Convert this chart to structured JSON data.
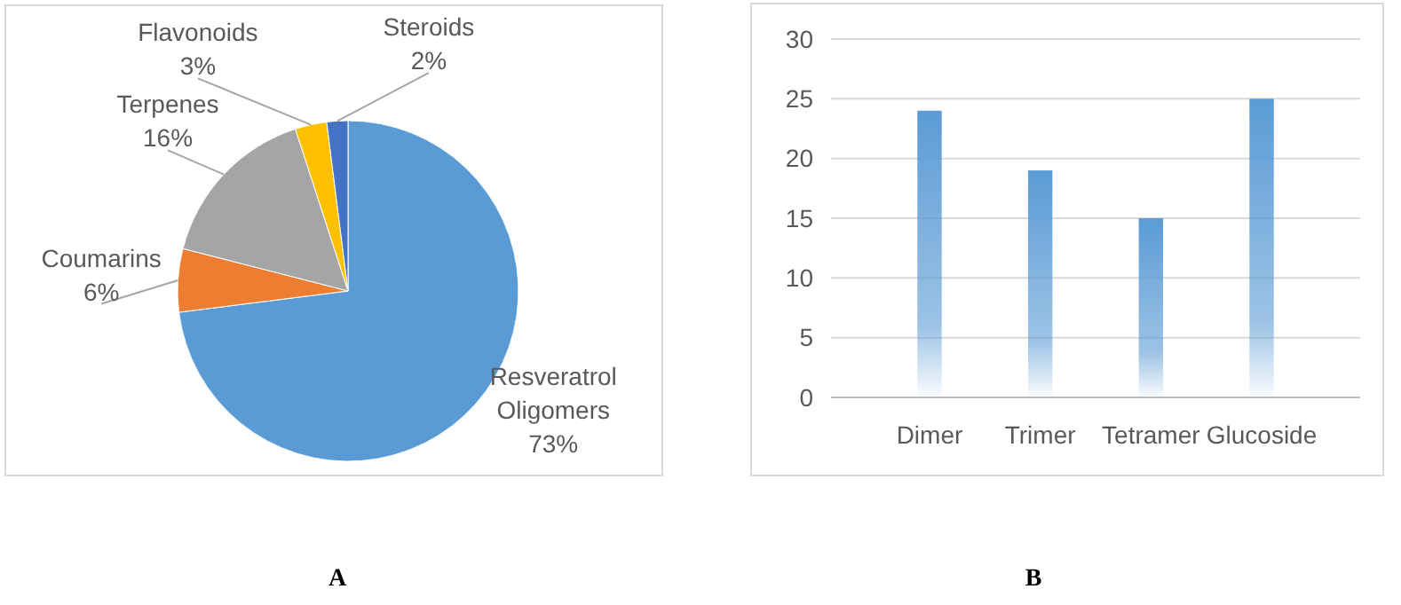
{
  "chart_data": [
    {
      "type": "pie",
      "categories": [
        "Resveratrol Oligomers",
        "Coumarins",
        "Terpenes",
        "Flavonoids",
        "Steroids"
      ],
      "values": [
        73,
        6,
        16,
        3,
        2
      ],
      "value_labels": [
        "73%",
        "6%",
        "16%",
        "3%",
        "2%"
      ],
      "colors": [
        "#5b9bd5",
        "#ed7d31",
        "#a5a5a5",
        "#ffc000",
        "#4472c4"
      ],
      "annotations": [
        "A"
      ]
    },
    {
      "type": "bar",
      "categories": [
        "Dimer",
        "Trimer",
        "Tetramer",
        "Glucoside"
      ],
      "values": [
        24,
        19,
        15,
        25
      ],
      "color": "#5b9bd5",
      "ylim": [
        0,
        30
      ],
      "yticks": [
        0,
        5,
        10,
        15,
        20,
        25,
        30
      ],
      "grid": "y",
      "annotations": [
        "B"
      ]
    }
  ]
}
